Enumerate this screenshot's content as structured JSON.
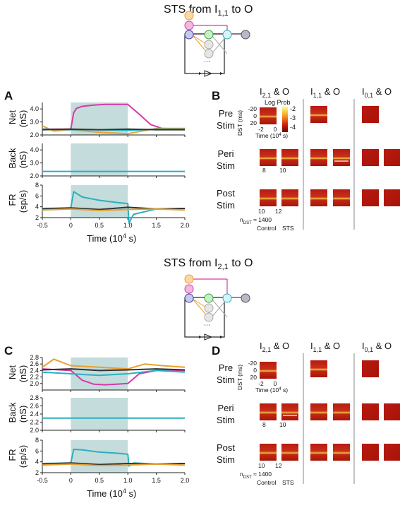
{
  "figure": {
    "top": {
      "title_main": "STS from I",
      "title_sub": "1,1",
      "title_tail": " to O",
      "panel_plots": "A",
      "panel_maps": "B"
    },
    "bottom": {
      "title_main": "STS from I",
      "title_sub": "2,1",
      "title_tail": " to O",
      "panel_plots": "C",
      "panel_maps": "D"
    },
    "axes": {
      "net_label": [
        "Net",
        "(nS)"
      ],
      "back_label": [
        "Back",
        "(nS)"
      ],
      "fr_label": [
        "FR",
        "(sp/s)"
      ],
      "xlabel": "Time (10",
      "xlabel_exp": "4",
      "xlabel_tail": " s)",
      "xticks": [
        "-0.5",
        "0",
        "0.5",
        "1.0",
        "1.5",
        "2.0"
      ]
    },
    "maps": {
      "col_heads": [
        {
          "main": "I",
          "sub": "2,1",
          "tail": " & O"
        },
        {
          "main": "I",
          "sub": "1,1",
          "tail": " & O"
        },
        {
          "main": "I",
          "sub": "0,1",
          "tail": " & O"
        }
      ],
      "rows": [
        {
          "line1": "Pre",
          "line2": "Stim"
        },
        {
          "line1": "Peri",
          "line2": "Stim"
        },
        {
          "line1": "Post",
          "line2": "Stim"
        }
      ],
      "dst_label": "DST (ms)",
      "dst_ticks": [
        "-20",
        "0",
        "20"
      ],
      "time_ticks": [
        "-2",
        "0"
      ],
      "time_label": "Time (10",
      "time_exp": "4",
      "time_tail": " s)",
      "colorbar_title": "Log Prob",
      "colorbar_ticks": [
        "-2",
        "-3",
        "-4"
      ],
      "peri_ticks": [
        "8",
        "10"
      ],
      "post_ticks": [
        "10",
        "12"
      ],
      "ndst": "n",
      "ndst_sub": "DST",
      "ndst_val": " ≈ 1400",
      "control_label": "Control",
      "sts_label": "STS"
    }
  },
  "chart_data": [
    {
      "type": "line",
      "panel": "A-Net",
      "ylabel": "Net (nS)",
      "ylim": [
        2.0,
        4.5
      ],
      "yticks": [
        2.0,
        3.0,
        4.0
      ],
      "stim_window": [
        0,
        1.0
      ],
      "series": [
        {
          "color": "#d63aa8",
          "x": [
            -0.5,
            0,
            0.05,
            0.1,
            0.2,
            0.4,
            0.6,
            0.8,
            1.0,
            1.2,
            1.4,
            1.6,
            2.0
          ],
          "y": [
            2.45,
            2.45,
            3.7,
            4.05,
            4.2,
            4.3,
            4.35,
            4.35,
            4.35,
            3.6,
            2.8,
            2.5,
            2.45
          ]
        },
        {
          "color": "#e8a030",
          "x": [
            -0.5,
            -0.3,
            0,
            0.5,
            1.0,
            1.5,
            2.0
          ],
          "y": [
            2.7,
            2.3,
            2.4,
            2.2,
            2.1,
            2.5,
            2.5
          ]
        },
        {
          "color": "#2ab0c0",
          "x": [
            -0.5,
            0,
            0.5,
            1.0,
            1.5,
            2.0
          ],
          "y": [
            2.45,
            2.4,
            2.4,
            2.35,
            2.45,
            2.45
          ]
        },
        {
          "color": "#333333",
          "x": [
            -0.5,
            0,
            0.5,
            1.0,
            1.5,
            2.0
          ],
          "y": [
            2.4,
            2.45,
            2.4,
            2.45,
            2.4,
            2.4
          ]
        }
      ]
    },
    {
      "type": "line",
      "panel": "A-Back",
      "ylabel": "Back (nS)",
      "ylim": [
        2.0,
        4.5
      ],
      "yticks": [
        2.0,
        3.0,
        4.0
      ],
      "stim_window": [
        0,
        1.0
      ],
      "series": [
        {
          "color": "#2ab0c0",
          "x": [
            -0.5,
            2.0
          ],
          "y": [
            2.35,
            2.35
          ]
        }
      ]
    },
    {
      "type": "line",
      "panel": "A-FR",
      "ylabel": "FR (sp/s)",
      "ylim": [
        2,
        8
      ],
      "yticks": [
        2,
        4,
        6,
        8
      ],
      "stim_window": [
        0,
        1.0
      ],
      "series": [
        {
          "color": "#2ab0c0",
          "x": [
            -0.5,
            0,
            0.05,
            0.2,
            0.5,
            0.8,
            1.0,
            1.02,
            1.1,
            1.5,
            2.0
          ],
          "y": [
            3.7,
            3.8,
            6.8,
            5.8,
            5.2,
            4.8,
            4.6,
            1.0,
            2.6,
            3.6,
            3.7
          ]
        },
        {
          "color": "#333333",
          "x": [
            -0.5,
            0,
            0.5,
            1.0,
            1.5,
            2.0
          ],
          "y": [
            3.6,
            3.8,
            3.5,
            3.9,
            3.6,
            3.7
          ]
        },
        {
          "color": "#e8a030",
          "x": [
            -0.5,
            0,
            0.5,
            1.0,
            1.5,
            2.0
          ],
          "y": [
            3.4,
            3.6,
            3.3,
            3.5,
            3.6,
            3.4
          ]
        }
      ]
    },
    {
      "type": "line",
      "panel": "C-Net",
      "ylabel": "Net (nS)",
      "ylim": [
        1.8,
        2.8
      ],
      "yticks": [
        2.0,
        2.2,
        2.4,
        2.6,
        2.8
      ],
      "stim_window": [
        0,
        1.0
      ],
      "series": [
        {
          "color": "#d63aa8",
          "x": [
            -0.5,
            0,
            0.2,
            0.4,
            0.6,
            0.8,
            1.0,
            1.2,
            1.5,
            2.0
          ],
          "y": [
            2.45,
            2.4,
            2.1,
            1.98,
            1.96,
            1.98,
            2.0,
            2.3,
            2.4,
            2.4
          ]
        },
        {
          "color": "#e8a030",
          "x": [
            -0.5,
            -0.3,
            0,
            0.5,
            1.0,
            1.3,
            1.6,
            2.0
          ],
          "y": [
            2.5,
            2.75,
            2.55,
            2.5,
            2.45,
            2.6,
            2.55,
            2.5
          ]
        },
        {
          "color": "#2ab0c0",
          "x": [
            -0.5,
            0,
            0.5,
            1.0,
            1.5,
            2.0
          ],
          "y": [
            2.35,
            2.3,
            2.25,
            2.3,
            2.4,
            2.35
          ]
        },
        {
          "color": "#333333",
          "x": [
            -0.5,
            0,
            0.5,
            1.0,
            1.5,
            2.0
          ],
          "y": [
            2.42,
            2.45,
            2.4,
            2.42,
            2.45,
            2.42
          ]
        }
      ]
    },
    {
      "type": "line",
      "panel": "C-Back",
      "ylabel": "Back (nS)",
      "ylim": [
        2.0,
        2.8
      ],
      "yticks": [
        2.0,
        2.2,
        2.4,
        2.6,
        2.8
      ],
      "stim_window": [
        0,
        1.0
      ],
      "series": [
        {
          "color": "#2ab0c0",
          "x": [
            -0.5,
            2.0
          ],
          "y": [
            2.3,
            2.3
          ]
        }
      ]
    },
    {
      "type": "line",
      "panel": "C-FR",
      "ylabel": "FR (sp/s)",
      "ylim": [
        2,
        8
      ],
      "yticks": [
        2,
        4,
        6,
        8
      ],
      "stim_window": [
        0,
        1.0
      ],
      "series": [
        {
          "color": "#2ab0c0",
          "x": [
            -0.5,
            0,
            0.05,
            0.2,
            0.5,
            0.8,
            1.0,
            1.02,
            1.1,
            1.5,
            2.0
          ],
          "y": [
            3.7,
            3.8,
            6.3,
            6.2,
            5.8,
            5.6,
            5.4,
            3.2,
            3.8,
            3.6,
            3.7
          ]
        },
        {
          "color": "#333333",
          "x": [
            -0.5,
            0,
            0.5,
            1.0,
            1.5,
            2.0
          ],
          "y": [
            3.6,
            3.8,
            3.5,
            3.7,
            3.6,
            3.7
          ]
        },
        {
          "color": "#e8a030",
          "x": [
            -0.5,
            0,
            0.5,
            1.0,
            1.5,
            2.0
          ],
          "y": [
            3.4,
            3.6,
            3.3,
            3.4,
            3.6,
            3.4
          ]
        }
      ]
    }
  ]
}
